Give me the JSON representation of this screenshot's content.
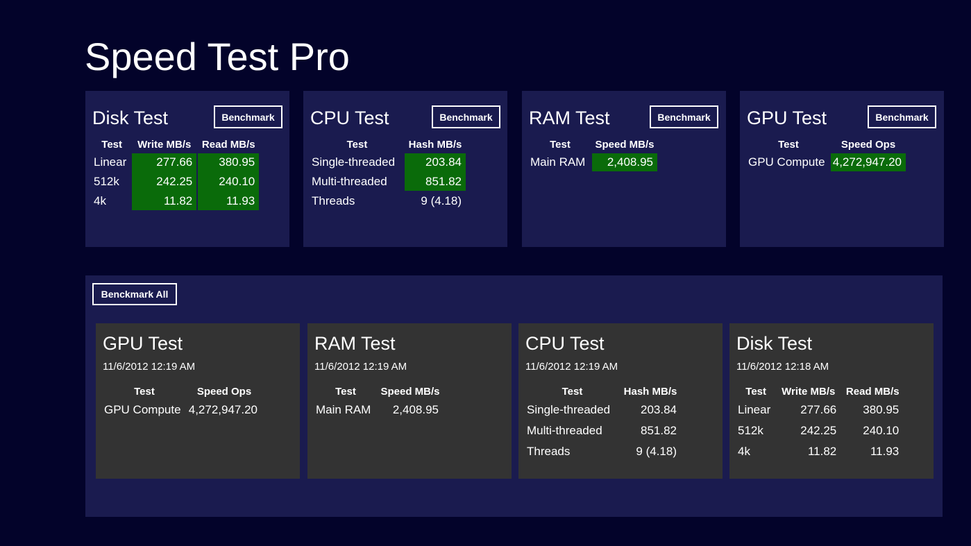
{
  "app": {
    "title": "Speed Test Pro"
  },
  "colors": {
    "background": "#03032a",
    "panel": "#1a1b4f",
    "history_card": "#333333",
    "highlight": "#0a6b0a"
  },
  "tests": {
    "disk": {
      "title": "Disk Test",
      "button": "Benchmark",
      "headers": [
        "Test",
        "Write MB/s",
        "Read MB/s"
      ],
      "rows": [
        {
          "label": "Linear",
          "write": "277.66",
          "read": "380.95"
        },
        {
          "label": "512k",
          "write": "242.25",
          "read": "240.10"
        },
        {
          "label": "4k",
          "write": "11.82",
          "read": "11.93"
        }
      ]
    },
    "cpu": {
      "title": "CPU Test",
      "button": "Benchmark",
      "headers": [
        "Test",
        "Hash MB/s"
      ],
      "rows": [
        {
          "label": "Single-threaded",
          "value": "203.84"
        },
        {
          "label": "Multi-threaded",
          "value": "851.82"
        },
        {
          "label": "Threads",
          "value": "9 (4.18)"
        }
      ]
    },
    "ram": {
      "title": "RAM Test",
      "button": "Benchmark",
      "headers": [
        "Test",
        "Speed MB/s"
      ],
      "rows": [
        {
          "label": "Main RAM",
          "value": "2,408.95"
        }
      ]
    },
    "gpu": {
      "title": "GPU Test",
      "button": "Benchmark",
      "headers": [
        "Test",
        "Speed Ops"
      ],
      "rows": [
        {
          "label": "GPU Compute",
          "value": "4,272,947.20"
        }
      ]
    }
  },
  "history": {
    "button": "Benckmark All",
    "gpu": {
      "title": "GPU Test",
      "date": "11/6/2012 12:19 AM",
      "headers": [
        "Test",
        "Speed Ops"
      ],
      "rows": [
        {
          "label": "GPU Compute",
          "value": "4,272,947.20"
        }
      ]
    },
    "ram": {
      "title": "RAM Test",
      "date": "11/6/2012 12:19 AM",
      "headers": [
        "Test",
        "Speed MB/s"
      ],
      "rows": [
        {
          "label": "Main RAM",
          "value": "2,408.95"
        }
      ]
    },
    "cpu": {
      "title": "CPU Test",
      "date": "11/6/2012 12:19 AM",
      "headers": [
        "Test",
        "Hash MB/s"
      ],
      "rows": [
        {
          "label": "Single-threaded",
          "value": "203.84"
        },
        {
          "label": "Multi-threaded",
          "value": "851.82"
        },
        {
          "label": "Threads",
          "value": "9 (4.18)"
        }
      ]
    },
    "disk": {
      "title": "Disk Test",
      "date": "11/6/2012 12:18 AM",
      "headers": [
        "Test",
        "Write MB/s",
        "Read MB/s"
      ],
      "rows": [
        {
          "label": "Linear",
          "write": "277.66",
          "read": "380.95"
        },
        {
          "label": "512k",
          "write": "242.25",
          "read": "240.10"
        },
        {
          "label": "4k",
          "write": "11.82",
          "read": "11.93"
        }
      ]
    }
  }
}
